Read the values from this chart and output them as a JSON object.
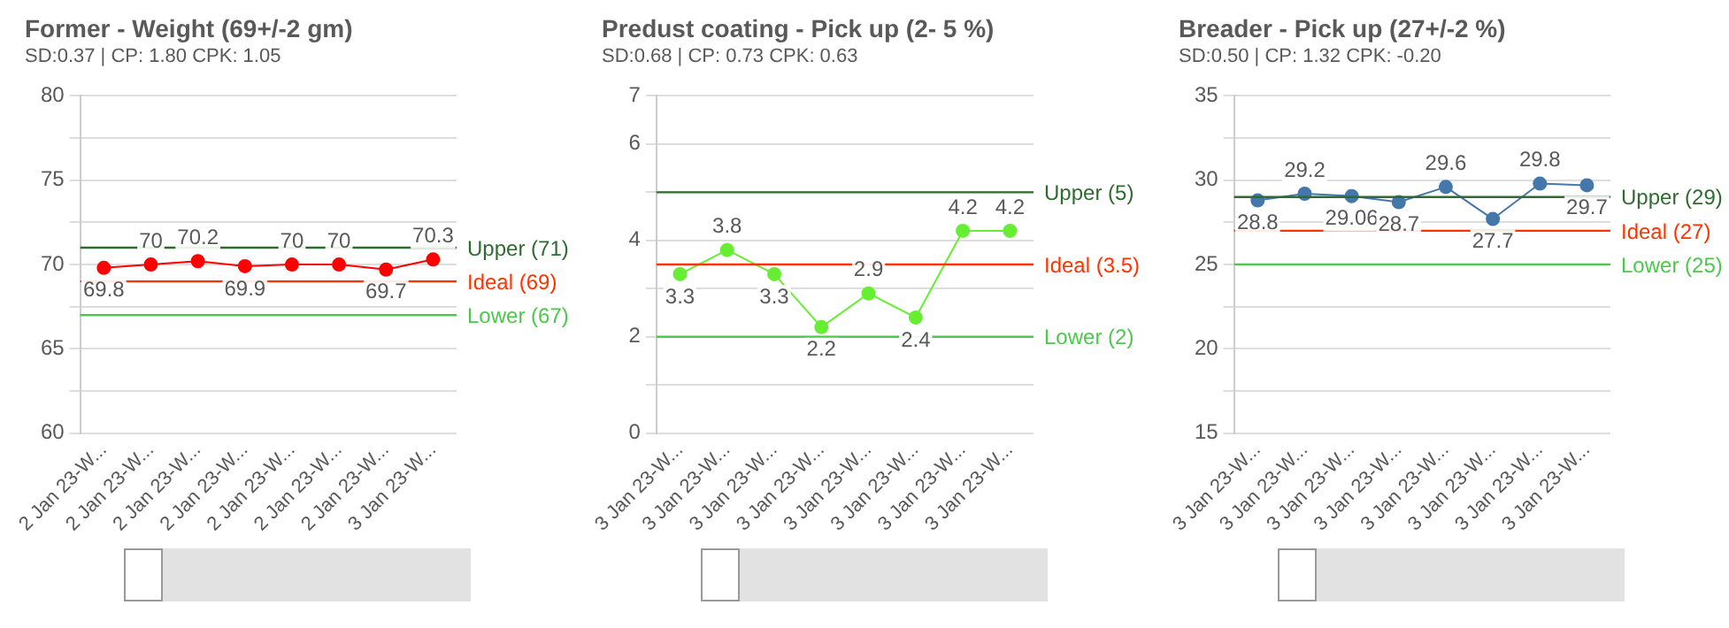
{
  "chart_data": [
    {
      "type": "line",
      "title": "Former - Weight (69+/-2 gm)",
      "subtitle": "SD:0.37 | CP: 1.80 CPK: 1.05",
      "categories": [
        "2 Jan 23-W...",
        "2 Jan 23-W...",
        "2 Jan 23-W...",
        "2 Jan 23-W...",
        "2 Jan 23-W...",
        "2 Jan 23-W...",
        "2 Jan 23-W...",
        "3 Jan 23-W..."
      ],
      "series": [
        {
          "color": "#ff0000",
          "values": [
            69.8,
            70,
            70.2,
            69.9,
            70,
            70,
            69.7,
            70.3
          ]
        }
      ],
      "ylim": [
        60,
        80
      ],
      "yticks": [
        60,
        {
          "value": 62.5,
          "label": null
        },
        65,
        {
          "value": 67.5,
          "label": null
        },
        70,
        {
          "value": 72.5,
          "label": null
        },
        75,
        {
          "value": 77.5,
          "label": null
        },
        80
      ],
      "grid": "y",
      "marker": "circle",
      "data_labels": true,
      "ref_lines": [
        {
          "axis": "y",
          "value": 71,
          "label": "Upper (71)",
          "color": "#2e6b2e"
        },
        {
          "axis": "y",
          "value": 69,
          "label": "Ideal (69)",
          "color": "#ff3300"
        },
        {
          "axis": "y",
          "value": 67,
          "label": "Lower (67)",
          "color": "#4cc94c"
        }
      ]
    },
    {
      "type": "line",
      "title": "Predust coating - Pick up (2- 5 %)",
      "subtitle": "SD:0.68 | CP: 0.73 CPK: 0.63",
      "categories": [
        "3 Jan 23-W...",
        "3 Jan 23-W...",
        "3 Jan 23-W...",
        "3 Jan 23-W...",
        "3 Jan 23-W...",
        "3 Jan 23-W...",
        "3 Jan 23-W...",
        "3 Jan 23-W..."
      ],
      "series": [
        {
          "color": "#66ee33",
          "values": [
            3.3,
            3.8,
            3.3,
            2.2,
            2.9,
            2.4,
            4.2,
            4.2
          ]
        }
      ],
      "ylim": [
        0,
        7
      ],
      "yticks": [
        0,
        {
          "value": 1,
          "label": null
        },
        2,
        {
          "value": 3,
          "label": null
        },
        4,
        {
          "value": 5,
          "label": null
        },
        6,
        7
      ],
      "grid": "y",
      "marker": "circle",
      "data_labels": true,
      "ref_lines": [
        {
          "axis": "y",
          "value": 5,
          "label": "Upper (5)",
          "color": "#2e6b2e"
        },
        {
          "axis": "y",
          "value": 3.5,
          "label": "Ideal (3.5)",
          "color": "#ff3300"
        },
        {
          "axis": "y",
          "value": 2,
          "label": "Lower (2)",
          "color": "#4cc94c"
        }
      ]
    },
    {
      "type": "line",
      "title": "Breader - Pick up (27+/-2 %)",
      "subtitle": "SD:0.50 | CP: 1.32 CPK: -0.20",
      "categories": [
        "3 Jan 23-W...",
        "3 Jan 23-W...",
        "3 Jan 23-W...",
        "3 Jan 23-W...",
        "3 Jan 23-W...",
        "3 Jan 23-W...",
        "3 Jan 23-W...",
        "3 Jan 23-W..."
      ],
      "series": [
        {
          "color": "#4477aa",
          "values": [
            28.8,
            29.2,
            29.06,
            28.7,
            29.6,
            27.7,
            29.8,
            29.7
          ]
        }
      ],
      "ylim": [
        15,
        35
      ],
      "yticks": [
        15,
        {
          "value": 17.5,
          "label": null
        },
        20,
        {
          "value": 22.5,
          "label": null
        },
        25,
        {
          "value": 27.5,
          "label": null
        },
        30,
        {
          "value": 32.5,
          "label": null
        },
        35
      ],
      "grid": "y",
      "marker": "circle",
      "data_labels": true,
      "ref_lines": [
        {
          "axis": "y",
          "value": 29,
          "label": "Upper (29)",
          "color": "#2e6b2e"
        },
        {
          "axis": "y",
          "value": 27,
          "label": "Ideal (27)",
          "color": "#ff3300"
        },
        {
          "axis": "y",
          "value": 25,
          "label": "Lower (25)",
          "color": "#4cc94c"
        }
      ]
    }
  ]
}
